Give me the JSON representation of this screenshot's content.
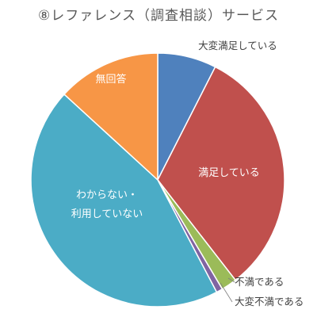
{
  "chart_data": {
    "type": "pie",
    "title": "⑧レファレンス（調査相談）サービス",
    "slices": [
      {
        "label": "大変満足している",
        "value": 7.5,
        "color": "#4f81bd",
        "label_pos": "outside"
      },
      {
        "label": "満足している",
        "value": 32.0,
        "color": "#c0504d",
        "label_pos": "inside"
      },
      {
        "label": "不満である",
        "value": 2.0,
        "color": "#9bbb59",
        "label_pos": "outside"
      },
      {
        "label": "大変不満である",
        "value": 0.8,
        "color": "#8064a2",
        "label_pos": "outside"
      },
      {
        "label": "わからない・\n利用していない",
        "value": 44.5,
        "color": "#4bacc6",
        "label_pos": "inside"
      },
      {
        "label": "無回答",
        "value": 13.2,
        "color": "#f79646",
        "label_pos": "inside"
      }
    ]
  }
}
